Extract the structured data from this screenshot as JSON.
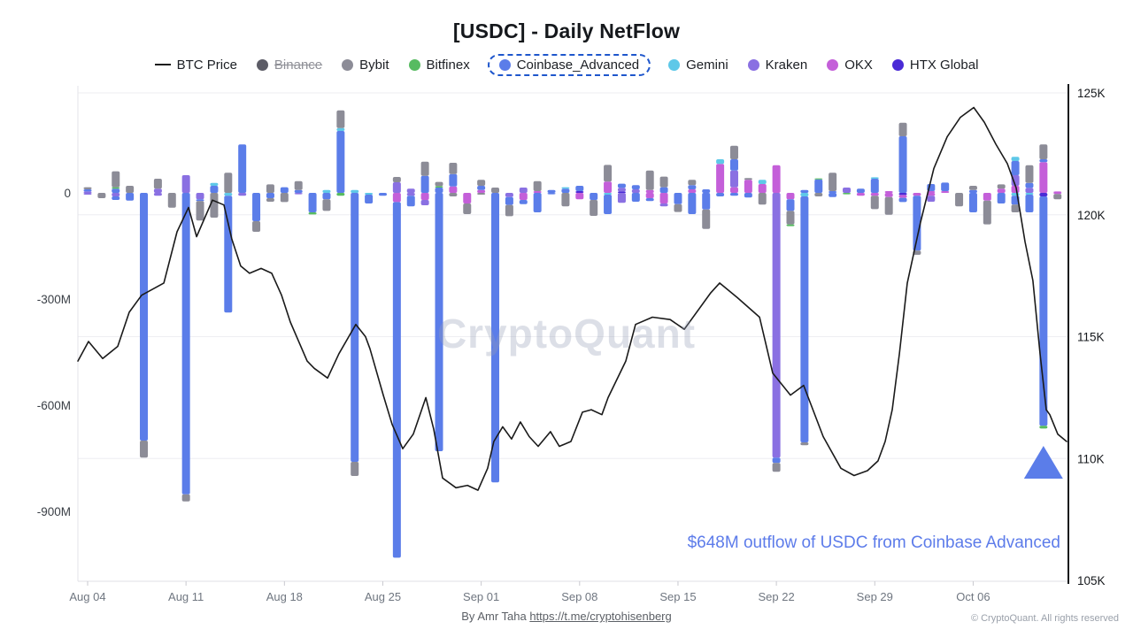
{
  "title": "[USDC] - Daily NetFlow",
  "watermark": "CryptoQuant",
  "annotation": {
    "text": "$648M outflow of USDC from Coinbase Advanced",
    "color": "#5d7cea"
  },
  "footer": {
    "by_label": "By Amr Taha ",
    "link_text": "https://t.me/cryptohisenberg",
    "copyright": "© CryptoQuant. All rights reserved"
  },
  "legend": [
    {
      "id": "btc",
      "label": "BTC Price",
      "type": "line",
      "color": "#1a1a1a"
    },
    {
      "id": "binance",
      "label": "Binance",
      "color": "#5c5c66",
      "disabled": true
    },
    {
      "id": "bybit",
      "label": "Bybit",
      "color": "#8c8c97"
    },
    {
      "id": "bitfinex",
      "label": "Bitfinex",
      "color": "#57bb61"
    },
    {
      "id": "coinbase",
      "label": "Coinbase_Advanced",
      "color": "#5b7de9",
      "highlighted": true
    },
    {
      "id": "gemini",
      "label": "Gemini",
      "color": "#5ec8e8"
    },
    {
      "id": "kraken",
      "label": "Kraken",
      "color": "#8a70e2"
    },
    {
      "id": "okx",
      "label": "OKX",
      "color": "#c45fd9"
    },
    {
      "id": "htx",
      "label": "HTX Global",
      "color": "#4a2bd6"
    }
  ],
  "chart_data": {
    "type": "bar+line combo",
    "units": {
      "bars": "USD millions netflow per day",
      "line": "BTC price, thousands USD"
    },
    "left_axis": {
      "ticks": [
        {
          "label": "0",
          "value": 0
        },
        {
          "label": "-300M",
          "value": -300
        },
        {
          "label": "-600M",
          "value": -600
        },
        {
          "label": "-900M",
          "value": -900
        }
      ]
    },
    "right_axis": {
      "ticks": [
        {
          "label": "125K",
          "value": 125
        },
        {
          "label": "120K",
          "value": 120
        },
        {
          "label": "115K",
          "value": 115
        },
        {
          "label": "110K",
          "value": 110
        },
        {
          "label": "105K",
          "value": 105
        }
      ],
      "range": [
        105,
        125
      ]
    },
    "x_ticks": [
      {
        "label": "Aug 04",
        "day": 0
      },
      {
        "label": "Aug 11",
        "day": 7
      },
      {
        "label": "Aug 18",
        "day": 14
      },
      {
        "label": "Aug 25",
        "day": 21
      },
      {
        "label": "Sep 01",
        "day": 28
      },
      {
        "label": "Sep 08",
        "day": 35
      },
      {
        "label": "Sep 15",
        "day": 42
      },
      {
        "label": "Sep 22",
        "day": 49
      },
      {
        "label": "Sep 29",
        "day": 56
      },
      {
        "label": "Oct 06",
        "day": 63
      }
    ],
    "colors": {
      "bybit": "#8c8c97",
      "bitfinex": "#57bb61",
      "coinbase": "#5b7de9",
      "gemini": "#5ec8e8",
      "kraken": "#8a70e2",
      "okx": "#c45fd9",
      "htx": "#4a2bd6",
      "btc_line": "#1a1a1a"
    },
    "stack_order_pos": [
      "htx",
      "okx",
      "kraken",
      "coinbase",
      "gemini",
      "bitfinex",
      "bybit"
    ],
    "stack_order_neg": [
      "htx",
      "okx",
      "kraken",
      "gemini",
      "coinbase",
      "bybit",
      "bitfinex"
    ],
    "marker": {
      "shape": "triangle-up",
      "day": 68,
      "color": "#5b7de9"
    },
    "bars": [
      {
        "d": "Aug 04",
        "p": {
          "kraken": 4,
          "coinbase": 6,
          "bybit": 6
        },
        "n": {
          "kraken": 5
        }
      },
      {
        "d": "Aug 05",
        "p": {},
        "n": {
          "bybit": 15
        }
      },
      {
        "d": "Aug 06",
        "p": {
          "coinbase": 12,
          "bitfinex": 4,
          "bybit": 45
        },
        "n": {
          "kraken": 10,
          "coinbase": 10
        }
      },
      {
        "d": "Aug 07",
        "p": {
          "bybit": 20
        },
        "n": {
          "coinbase": 22
        }
      },
      {
        "d": "Aug 08",
        "p": {},
        "n": {
          "coinbase": 700,
          "bybit": 48
        }
      },
      {
        "d": "Aug 09",
        "p": {
          "kraken": 12,
          "bybit": 28
        },
        "n": {
          "kraken": 8
        }
      },
      {
        "d": "Aug 10",
        "p": {},
        "n": {
          "bybit": 42
        }
      },
      {
        "d": "Aug 11",
        "p": {
          "kraken": 50
        },
        "n": {
          "coinbase": 852,
          "bybit": 20
        }
      },
      {
        "d": "Aug 12",
        "p": {},
        "n": {
          "kraken": 18,
          "coinbase": 5,
          "bybit": 55
        }
      },
      {
        "d": "Aug 13",
        "p": {
          "coinbase": 20,
          "gemini": 8
        },
        "n": {
          "bybit": 70
        }
      },
      {
        "d": "Aug 14",
        "p": {
          "bybit": 57
        },
        "n": {
          "gemini": 8,
          "coinbase": 330
        }
      },
      {
        "d": "Aug 15",
        "p": {
          "coinbase": 137
        },
        "n": {
          "kraken": 8
        }
      },
      {
        "d": "Aug 16",
        "p": {},
        "n": {
          "coinbase": 80,
          "bybit": 30
        }
      },
      {
        "d": "Aug 17",
        "p": {
          "bybit": 24
        },
        "n": {
          "coinbase": 15,
          "bybit": 10
        }
      },
      {
        "d": "Aug 18",
        "p": {
          "coinbase": 16
        },
        "n": {
          "bybit": 26
        }
      },
      {
        "d": "Aug 19",
        "p": {
          "coinbase": 8,
          "bybit": 25
        },
        "n": {
          "kraken": 4
        }
      },
      {
        "d": "Aug 20",
        "p": {},
        "n": {
          "coinbase": 55,
          "bitfinex": 6
        }
      },
      {
        "d": "Aug 21",
        "p": {
          "gemini": 8
        },
        "n": {
          "coinbase": 18,
          "bybit": 33
        }
      },
      {
        "d": "Aug 22",
        "p": {
          "coinbase": 175,
          "gemini": 8,
          "bybit": 50
        },
        "n": {
          "bitfinex": 8
        }
      },
      {
        "d": "Aug 23",
        "p": {
          "gemini": 8
        },
        "n": {
          "coinbase": 760,
          "bybit": 40
        }
      },
      {
        "d": "Aug 24",
        "p": {},
        "n": {
          "gemini": 5,
          "coinbase": 25
        }
      },
      {
        "d": "Aug 25",
        "p": {},
        "n": {
          "coinbase": 8
        }
      },
      {
        "d": "Aug 26",
        "p": {
          "kraken": 30,
          "bybit": 15
        },
        "n": {
          "okx": 26,
          "coinbase": 1005
        }
      },
      {
        "d": "Aug 27",
        "p": {
          "kraken": 12
        },
        "n": {
          "kraken": 8,
          "coinbase": 30
        }
      },
      {
        "d": "Aug 28",
        "p": {
          "coinbase": 48,
          "bybit": 40
        },
        "n": {
          "okx": 20,
          "kraken": 15
        }
      },
      {
        "d": "Aug 29",
        "p": {
          "coinbase": 15,
          "bitfinex": 4,
          "bybit": 12
        },
        "n": {
          "coinbase": 730
        }
      },
      {
        "d": "Aug 30",
        "p": {
          "okx": 18,
          "coinbase": 35,
          "bybit": 32
        },
        "n": {
          "bybit": 10
        }
      },
      {
        "d": "Aug 31",
        "p": {},
        "n": {
          "okx": 30,
          "bybit": 30
        }
      },
      {
        "d": "Sep 01",
        "p": {
          "okx": 8,
          "coinbase": 12,
          "bybit": 17
        },
        "n": {
          "bybit": 5
        }
      },
      {
        "d": "Sep 02",
        "p": {
          "bybit": 15
        },
        "n": {
          "coinbase": 818
        }
      },
      {
        "d": "Sep 03",
        "p": {},
        "n": {
          "kraken": 12,
          "coinbase": 22,
          "bybit": 32
        }
      },
      {
        "d": "Sep 04",
        "p": {
          "kraken": 15
        },
        "n": {
          "okx": 20,
          "coinbase": 12
        }
      },
      {
        "d": "Sep 05",
        "p": {
          "okx": 5,
          "bybit": 28
        },
        "n": {
          "coinbase": 55
        }
      },
      {
        "d": "Sep 06",
        "p": {
          "coinbase": 8
        },
        "n": {
          "coinbase": 4
        }
      },
      {
        "d": "Sep 07",
        "p": {
          "coinbase": 12,
          "gemini": 4
        },
        "n": {
          "bybit": 38
        }
      },
      {
        "d": "Sep 08",
        "p": {
          "htx": 5,
          "coinbase": 15
        },
        "n": {
          "okx": 18
        }
      },
      {
        "d": "Sep 09",
        "p": {},
        "n": {
          "coinbase": 20,
          "bybit": 45
        }
      },
      {
        "d": "Sep 10",
        "p": {
          "okx": 32,
          "bybit": 47
        },
        "n": {
          "gemini": 5,
          "coinbase": 55
        }
      },
      {
        "d": "Sep 11",
        "p": {
          "htx": 4,
          "kraken": 10,
          "coinbase": 12
        },
        "n": {
          "kraken": 28
        }
      },
      {
        "d": "Sep 12",
        "p": {
          "kraken": 10,
          "coinbase": 12
        },
        "n": {
          "coinbase": 25
        }
      },
      {
        "d": "Sep 13",
        "p": {
          "okx": 8,
          "bybit": 55
        },
        "n": {
          "okx": 15,
          "coinbase": 8
        }
      },
      {
        "d": "Sep 14",
        "p": {
          "coinbase": 16,
          "bybit": 30
        },
        "n": {
          "okx": 30,
          "kraken": 8
        }
      },
      {
        "d": "Sep 15",
        "p": {},
        "n": {
          "coinbase": 32,
          "bybit": 22
        }
      },
      {
        "d": "Sep 16",
        "p": {
          "okx": 10,
          "coinbase": 12,
          "bybit": 15
        },
        "n": {
          "coinbase": 60
        }
      },
      {
        "d": "Sep 17",
        "p": {
          "coinbase": 10
        },
        "n": {
          "coinbase": 47,
          "bybit": 55
        }
      },
      {
        "d": "Sep 18",
        "p": {
          "okx": 82,
          "gemini": 13
        },
        "n": {
          "coinbase": 10
        }
      },
      {
        "d": "Sep 19",
        "p": {
          "okx": 16,
          "kraken": 47,
          "coinbase": 32,
          "bybit": 38
        },
        "n": {
          "coinbase": 8
        }
      },
      {
        "d": "Sep 20",
        "p": {
          "okx": 37,
          "bybit": 5
        },
        "n": {
          "coinbase": 13
        }
      },
      {
        "d": "Sep 21",
        "p": {
          "okx": 25,
          "gemini": 12
        },
        "n": {
          "bybit": 33
        }
      },
      {
        "d": "Sep 22",
        "p": {
          "okx": 78
        },
        "n": {
          "kraken": 748,
          "coinbase": 15,
          "bybit": 25
        }
      },
      {
        "d": "Sep 23",
        "p": {},
        "n": {
          "okx": 18,
          "coinbase": 33,
          "bybit": 38,
          "bitfinex": 5
        }
      },
      {
        "d": "Sep 24",
        "p": {
          "coinbase": 8
        },
        "n": {
          "gemini": 10,
          "coinbase": 695,
          "bybit": 8
        }
      },
      {
        "d": "Sep 25",
        "p": {
          "coinbase": 38,
          "bitfinex": 3
        },
        "n": {
          "bybit": 10
        }
      },
      {
        "d": "Sep 26",
        "p": {
          "coinbase": 5,
          "bybit": 52
        },
        "n": {
          "coinbase": 12
        }
      },
      {
        "d": "Sep 27",
        "p": {
          "kraken": 15
        },
        "n": {
          "bitfinex": 4
        }
      },
      {
        "d": "Sep 28",
        "p": {
          "coinbase": 12
        },
        "n": {
          "okx": 8
        }
      },
      {
        "d": "Sep 29",
        "p": {
          "coinbase": 40,
          "gemini": 4
        },
        "n": {
          "okx": 8,
          "bybit": 38
        }
      },
      {
        "d": "Sep 30",
        "p": {
          "okx": 5
        },
        "n": {
          "okx": 12,
          "bybit": 50
        }
      },
      {
        "d": "Oct 01",
        "p": {
          "coinbase": 160,
          "bybit": 38
        },
        "n": {
          "htx": 6,
          "okx": 8,
          "coinbase": 12
        }
      },
      {
        "d": "Oct 02",
        "p": {},
        "n": {
          "okx": 8,
          "coinbase": 155,
          "bybit": 12
        }
      },
      {
        "d": "Oct 03",
        "p": {
          "okx": 5,
          "coinbase": 20
        },
        "n": {
          "okx": 8,
          "kraken": 17
        }
      },
      {
        "d": "Oct 04",
        "p": {
          "okx": 5,
          "coinbase": 24
        },
        "n": {}
      },
      {
        "d": "Oct 05",
        "p": {},
        "n": {
          "bybit": 38
        }
      },
      {
        "d": "Oct 06",
        "p": {
          "coinbase": 8,
          "bybit": 12
        },
        "n": {
          "coinbase": 55
        }
      },
      {
        "d": "Oct 07",
        "p": {},
        "n": {
          "okx": 22,
          "bybit": 67
        }
      },
      {
        "d": "Oct 08",
        "p": {
          "okx": 12,
          "bybit": 12
        },
        "n": {
          "coinbase": 30
        }
      },
      {
        "d": "Oct 09",
        "p": {
          "okx": 20,
          "kraken": 30,
          "coinbase": 40,
          "gemini": 12
        },
        "n": {
          "gemini": 8,
          "coinbase": 25,
          "bybit": 22
        }
      },
      {
        "d": "Oct 10",
        "p": {
          "kraken": 14,
          "coinbase": 14,
          "bybit": 50
        },
        "n": {
          "gemini": 5,
          "coinbase": 50
        }
      },
      {
        "d": "Oct 11",
        "p": {
          "okx": 87,
          "coinbase": 8,
          "bybit": 42
        },
        "n": {
          "htx": 10,
          "coinbase": 648,
          "bitfinex": 8
        }
      },
      {
        "d": "Oct 12",
        "p": {
          "okx": 4
        },
        "n": {
          "okx": 3,
          "bybit": 15
        }
      }
    ],
    "btc_line": [
      [
        -0.69,
        114.0
      ],
      [
        0.06,
        114.8
      ],
      [
        1.07,
        114.1
      ],
      [
        2.14,
        114.6
      ],
      [
        2.96,
        116.0
      ],
      [
        3.84,
        116.7
      ],
      [
        5.42,
        117.2
      ],
      [
        6.36,
        119.3
      ],
      [
        7.18,
        120.3
      ],
      [
        7.75,
        119.1
      ],
      [
        8.88,
        120.6
      ],
      [
        9.7,
        120.4
      ],
      [
        10.26,
        119.0
      ],
      [
        10.89,
        117.9
      ],
      [
        11.52,
        117.6
      ],
      [
        12.34,
        117.8
      ],
      [
        13.1,
        117.6
      ],
      [
        13.8,
        116.7
      ],
      [
        14.42,
        115.6
      ],
      [
        15.62,
        114.0
      ],
      [
        16.12,
        113.7
      ],
      [
        17.07,
        113.3
      ],
      [
        17.88,
        114.3
      ],
      [
        19.08,
        115.5
      ],
      [
        19.77,
        115.0
      ],
      [
        20.09,
        114.5
      ],
      [
        21.03,
        112.6
      ],
      [
        21.66,
        111.4
      ],
      [
        22.42,
        110.4
      ],
      [
        23.17,
        111.0
      ],
      [
        24.06,
        112.5
      ],
      [
        24.62,
        111.2
      ],
      [
        25.25,
        109.2
      ],
      [
        26.2,
        108.8
      ],
      [
        27.02,
        108.9
      ],
      [
        27.77,
        108.7
      ],
      [
        28.46,
        109.6
      ],
      [
        28.9,
        110.7
      ],
      [
        29.53,
        111.3
      ],
      [
        30.16,
        110.8
      ],
      [
        30.79,
        111.5
      ],
      [
        31.42,
        110.9
      ],
      [
        32.05,
        110.5
      ],
      [
        32.93,
        111.1
      ],
      [
        33.56,
        110.5
      ],
      [
        34.38,
        110.7
      ],
      [
        35.2,
        111.9
      ],
      [
        35.83,
        112.0
      ],
      [
        36.59,
        111.8
      ],
      [
        37.03,
        112.5
      ],
      [
        38.29,
        114.0
      ],
      [
        38.98,
        115.5
      ],
      [
        40.18,
        115.8
      ],
      [
        41.44,
        115.7
      ],
      [
        42.45,
        115.3
      ],
      [
        44.33,
        116.8
      ],
      [
        44.96,
        117.2
      ],
      [
        46.22,
        116.6
      ],
      [
        47.8,
        115.8
      ],
      [
        48.74,
        113.5
      ],
      [
        50.0,
        112.6
      ],
      [
        50.94,
        113.0
      ],
      [
        52.33,
        110.9
      ],
      [
        53.59,
        109.6
      ],
      [
        54.53,
        109.3
      ],
      [
        55.48,
        109.5
      ],
      [
        56.23,
        109.9
      ],
      [
        56.74,
        110.7
      ],
      [
        57.24,
        112.0
      ],
      [
        57.75,
        114.3
      ],
      [
        58.31,
        117.2
      ],
      [
        59.26,
        119.7
      ],
      [
        60.2,
        121.9
      ],
      [
        61.15,
        123.2
      ],
      [
        62.09,
        124.0
      ],
      [
        63.04,
        124.4
      ],
      [
        63.79,
        123.8
      ],
      [
        64.61,
        122.9
      ],
      [
        65.43,
        122.1
      ],
      [
        66.06,
        121.1
      ],
      [
        66.69,
        118.9
      ],
      [
        67.25,
        117.3
      ],
      [
        67.76,
        114.3
      ],
      [
        68.2,
        112.0
      ],
      [
        68.45,
        111.8
      ],
      [
        69.02,
        111.0
      ],
      [
        69.65,
        110.7
      ]
    ]
  }
}
